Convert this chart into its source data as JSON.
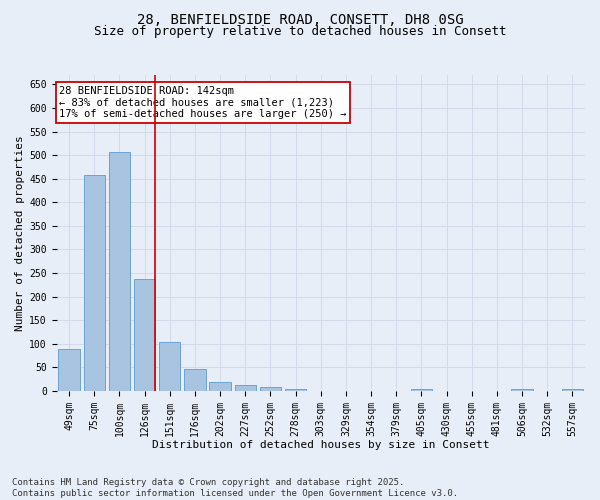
{
  "title_line1": "28, BENFIELDSIDE ROAD, CONSETT, DH8 0SG",
  "title_line2": "Size of property relative to detached houses in Consett",
  "xlabel": "Distribution of detached houses by size in Consett",
  "ylabel": "Number of detached properties",
  "categories": [
    "49sqm",
    "75sqm",
    "100sqm",
    "126sqm",
    "151sqm",
    "176sqm",
    "202sqm",
    "227sqm",
    "252sqm",
    "278sqm",
    "303sqm",
    "329sqm",
    "354sqm",
    "379sqm",
    "405sqm",
    "430sqm",
    "455sqm",
    "481sqm",
    "506sqm",
    "532sqm",
    "557sqm"
  ],
  "values": [
    88,
    457,
    507,
    238,
    104,
    47,
    18,
    13,
    8,
    3,
    0,
    0,
    0,
    0,
    3,
    0,
    0,
    0,
    3,
    0,
    3
  ],
  "bar_color": "#a8c4e0",
  "bar_edge_color": "#5b9bd5",
  "vline_index": 3,
  "vline_color": "#cc0000",
  "annotation_text": "28 BENFIELDSIDE ROAD: 142sqm\n← 83% of detached houses are smaller (1,223)\n17% of semi-detached houses are larger (250) →",
  "annotation_box_color": "#ffffff",
  "annotation_box_edge": "#cc0000",
  "ylim": [
    0,
    670
  ],
  "yticks": [
    0,
    50,
    100,
    150,
    200,
    250,
    300,
    350,
    400,
    450,
    500,
    550,
    600,
    650
  ],
  "grid_color": "#d0d8e8",
  "background_color": "#e8eef7",
  "footnote": "Contains HM Land Registry data © Crown copyright and database right 2025.\nContains public sector information licensed under the Open Government Licence v3.0.",
  "title_fontsize": 10,
  "subtitle_fontsize": 9,
  "axis_label_fontsize": 8,
  "tick_fontsize": 7,
  "annotation_fontsize": 7.5,
  "footnote_fontsize": 6.5
}
